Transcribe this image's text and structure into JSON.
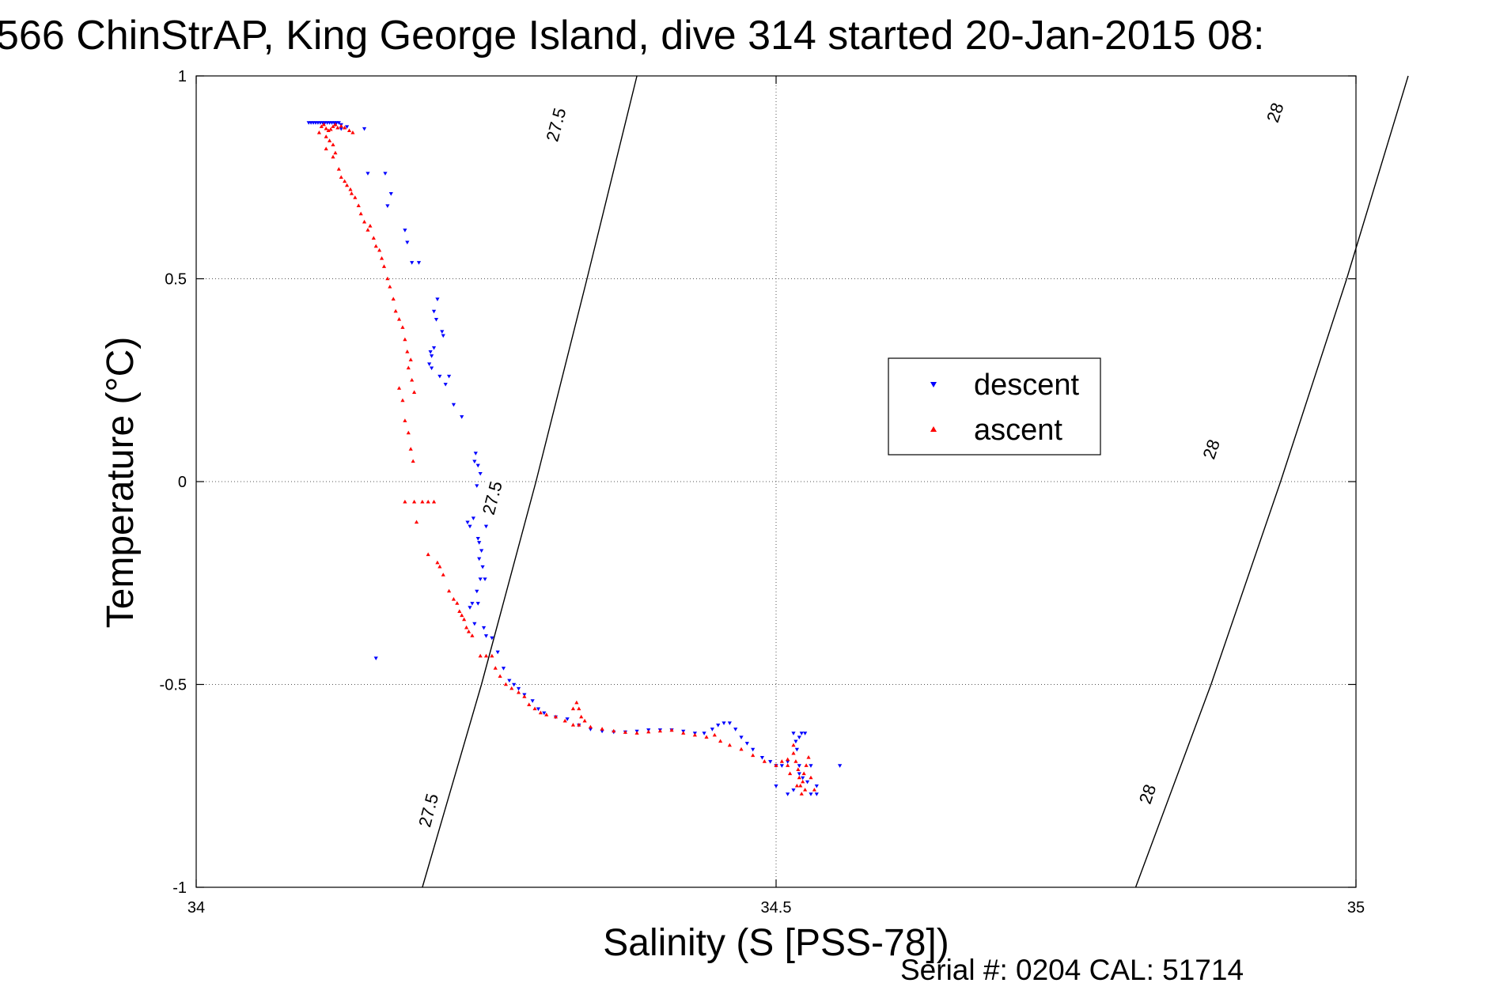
{
  "chart_data": {
    "type": "scatter",
    "title": "566 ChinStrAP, King George Island, dive 314 started 20-Jan-2015 08:",
    "xlabel": "Salinity (S [PSS-78])",
    "ylabel": "Temperature (°C)",
    "xlim": [
      34,
      35
    ],
    "ylim": [
      -1,
      1
    ],
    "xticks": [
      34,
      34.5,
      35
    ],
    "xtick_labels": [
      "34",
      "34.5",
      "35"
    ],
    "yticks": [
      -1,
      -0.5,
      0,
      0.5,
      1
    ],
    "ytick_labels": [
      "-1",
      "-0.5",
      "0",
      "0.5",
      "1"
    ],
    "grid": true,
    "legend_position": "upper-right-center",
    "footer": "Serial #: 0204  CAL: 51714",
    "contours": [
      {
        "label": "27.5",
        "points": [
          [
            34.195,
            -1.0
          ],
          [
            34.246,
            -0.5
          ],
          [
            34.293,
            0.0
          ],
          [
            34.337,
            0.5
          ],
          [
            34.38,
            1.0
          ]
        ],
        "label_positions": [
          [
            34.2,
            -0.81
          ],
          [
            34.255,
            -0.04
          ],
          [
            34.31,
            0.88
          ]
        ]
      },
      {
        "label": "28",
        "points": [
          [
            34.81,
            -1.0
          ],
          [
            34.875,
            -0.5
          ],
          [
            34.935,
            0.0
          ],
          [
            34.992,
            0.5
          ],
          [
            35.045,
            1.0
          ]
        ],
        "label_positions": [
          [
            34.82,
            -0.77
          ],
          [
            34.875,
            0.08
          ],
          [
            34.93,
            0.91
          ]
        ]
      }
    ],
    "series": [
      {
        "name": "descent",
        "color": "#0000ff",
        "marker": "triangle-down",
        "points": [
          [
            34.097,
            0.885
          ],
          [
            34.099,
            0.885
          ],
          [
            34.101,
            0.885
          ],
          [
            34.103,
            0.885
          ],
          [
            34.105,
            0.885
          ],
          [
            34.107,
            0.885
          ],
          [
            34.109,
            0.885
          ],
          [
            34.111,
            0.885
          ],
          [
            34.113,
            0.885
          ],
          [
            34.115,
            0.885
          ],
          [
            34.117,
            0.885
          ],
          [
            34.119,
            0.885
          ],
          [
            34.121,
            0.885
          ],
          [
            34.123,
            0.885
          ],
          [
            34.125,
            0.88
          ],
          [
            34.12,
            0.88
          ],
          [
            34.13,
            0.875
          ],
          [
            34.125,
            0.87
          ],
          [
            34.145,
            0.87
          ],
          [
            34.148,
            0.76
          ],
          [
            34.163,
            0.76
          ],
          [
            34.168,
            0.71
          ],
          [
            34.165,
            0.68
          ],
          [
            34.18,
            0.62
          ],
          [
            34.182,
            0.59
          ],
          [
            34.186,
            0.54
          ],
          [
            34.192,
            0.54
          ],
          [
            34.208,
            0.45
          ],
          [
            34.205,
            0.42
          ],
          [
            34.207,
            0.4
          ],
          [
            34.212,
            0.37
          ],
          [
            34.213,
            0.36
          ],
          [
            34.205,
            0.33
          ],
          [
            34.202,
            0.32
          ],
          [
            34.203,
            0.31
          ],
          [
            34.201,
            0.29
          ],
          [
            34.203,
            0.28
          ],
          [
            34.218,
            0.26
          ],
          [
            34.21,
            0.26
          ],
          [
            34.215,
            0.24
          ],
          [
            34.222,
            0.19
          ],
          [
            34.229,
            0.16
          ],
          [
            34.241,
            0.07
          ],
          [
            34.24,
            0.05
          ],
          [
            34.243,
            0.04
          ],
          [
            34.245,
            0.02
          ],
          [
            34.242,
            -0.01
          ],
          [
            34.239,
            -0.09
          ],
          [
            34.234,
            -0.1
          ],
          [
            34.236,
            -0.11
          ],
          [
            34.25,
            -0.11
          ],
          [
            34.243,
            -0.14
          ],
          [
            34.244,
            -0.15
          ],
          [
            34.246,
            -0.17
          ],
          [
            34.244,
            -0.19
          ],
          [
            34.247,
            -0.21
          ],
          [
            34.245,
            -0.24
          ],
          [
            34.242,
            -0.27
          ],
          [
            34.249,
            -0.24
          ],
          [
            34.243,
            -0.3
          ],
          [
            34.238,
            -0.3
          ],
          [
            34.236,
            -0.31
          ],
          [
            34.24,
            -0.35
          ],
          [
            34.248,
            -0.36
          ],
          [
            34.25,
            -0.38
          ],
          [
            34.255,
            -0.385
          ],
          [
            34.26,
            -0.42
          ],
          [
            34.265,
            -0.46
          ],
          [
            34.27,
            -0.49
          ],
          [
            34.274,
            -0.5
          ],
          [
            34.278,
            -0.51
          ],
          [
            34.283,
            -0.525
          ],
          [
            34.29,
            -0.54
          ],
          [
            34.295,
            -0.56
          ],
          [
            34.3,
            -0.57
          ],
          [
            34.31,
            -0.58
          ],
          [
            34.32,
            -0.585
          ],
          [
            34.33,
            -0.6
          ],
          [
            34.34,
            -0.61
          ],
          [
            34.35,
            -0.615
          ],
          [
            34.36,
            -0.617
          ],
          [
            34.37,
            -0.617
          ],
          [
            34.38,
            -0.615
          ],
          [
            34.39,
            -0.612
          ],
          [
            34.4,
            -0.612
          ],
          [
            34.41,
            -0.612
          ],
          [
            34.42,
            -0.615
          ],
          [
            34.43,
            -0.62
          ],
          [
            34.438,
            -0.62
          ],
          [
            34.445,
            -0.61
          ],
          [
            34.45,
            -0.6
          ],
          [
            34.455,
            -0.595
          ],
          [
            34.46,
            -0.595
          ],
          [
            34.465,
            -0.61
          ],
          [
            34.47,
            -0.63
          ],
          [
            34.475,
            -0.645
          ],
          [
            34.48,
            -0.66
          ],
          [
            34.488,
            -0.68
          ],
          [
            34.495,
            -0.69
          ],
          [
            34.5,
            -0.7
          ],
          [
            34.505,
            -0.7
          ],
          [
            34.51,
            -0.69
          ],
          [
            34.515,
            -0.62
          ],
          [
            34.517,
            -0.64
          ],
          [
            34.52,
            -0.63
          ],
          [
            34.522,
            -0.62
          ],
          [
            34.525,
            -0.62
          ],
          [
            34.518,
            -0.66
          ],
          [
            34.52,
            -0.7
          ],
          [
            34.523,
            -0.73
          ],
          [
            34.515,
            -0.76
          ],
          [
            34.51,
            -0.77
          ],
          [
            34.53,
            -0.77
          ],
          [
            34.527,
            -0.74
          ],
          [
            34.535,
            -0.77
          ],
          [
            34.535,
            -0.75
          ],
          [
            34.52,
            -0.72
          ],
          [
            34.53,
            -0.7
          ],
          [
            34.5,
            -0.75
          ],
          [
            34.555,
            -0.7
          ],
          [
            34.155,
            -0.435
          ]
        ]
      },
      {
        "name": "ascent",
        "color": "#ff0000",
        "marker": "triangle-up",
        "points": [
          [
            34.11,
            0.88
          ],
          [
            34.108,
            0.875
          ],
          [
            34.112,
            0.87
          ],
          [
            34.106,
            0.86
          ],
          [
            34.114,
            0.865
          ],
          [
            34.118,
            0.875
          ],
          [
            34.116,
            0.868
          ],
          [
            34.12,
            0.88
          ],
          [
            34.122,
            0.872
          ],
          [
            34.125,
            0.876
          ],
          [
            34.128,
            0.872
          ],
          [
            34.132,
            0.865
          ],
          [
            34.135,
            0.86
          ],
          [
            34.112,
            0.85
          ],
          [
            34.115,
            0.84
          ],
          [
            34.118,
            0.83
          ],
          [
            34.112,
            0.82
          ],
          [
            34.118,
            0.8
          ],
          [
            34.12,
            0.81
          ],
          [
            34.123,
            0.77
          ],
          [
            34.125,
            0.75
          ],
          [
            34.128,
            0.74
          ],
          [
            34.13,
            0.73
          ],
          [
            34.133,
            0.72
          ],
          [
            34.134,
            0.71
          ],
          [
            34.137,
            0.7
          ],
          [
            34.14,
            0.68
          ],
          [
            34.142,
            0.66
          ],
          [
            34.145,
            0.64
          ],
          [
            34.148,
            0.62
          ],
          [
            34.15,
            0.63
          ],
          [
            34.153,
            0.6
          ],
          [
            34.155,
            0.58
          ],
          [
            34.158,
            0.57
          ],
          [
            34.16,
            0.55
          ],
          [
            34.162,
            0.53
          ],
          [
            34.165,
            0.5
          ],
          [
            34.167,
            0.48
          ],
          [
            34.17,
            0.45
          ],
          [
            34.172,
            0.42
          ],
          [
            34.175,
            0.4
          ],
          [
            34.178,
            0.38
          ],
          [
            34.18,
            0.35
          ],
          [
            34.182,
            0.32
          ],
          [
            34.185,
            0.3
          ],
          [
            34.183,
            0.28
          ],
          [
            34.186,
            0.25
          ],
          [
            34.188,
            0.22
          ],
          [
            34.175,
            0.23
          ],
          [
            34.178,
            0.2
          ],
          [
            34.18,
            0.15
          ],
          [
            34.183,
            0.12
          ],
          [
            34.185,
            0.08
          ],
          [
            34.187,
            0.05
          ],
          [
            34.18,
            -0.05
          ],
          [
            34.188,
            -0.05
          ],
          [
            34.195,
            -0.05
          ],
          [
            34.2,
            -0.05
          ],
          [
            34.205,
            -0.05
          ],
          [
            34.19,
            -0.1
          ],
          [
            34.2,
            -0.18
          ],
          [
            34.208,
            -0.2
          ],
          [
            34.21,
            -0.21
          ],
          [
            34.213,
            -0.23
          ],
          [
            34.218,
            -0.27
          ],
          [
            34.222,
            -0.29
          ],
          [
            34.225,
            -0.3
          ],
          [
            34.227,
            -0.32
          ],
          [
            34.229,
            -0.33
          ],
          [
            34.231,
            -0.34
          ],
          [
            34.233,
            -0.36
          ],
          [
            34.235,
            -0.37
          ],
          [
            34.238,
            -0.38
          ],
          [
            34.245,
            -0.43
          ],
          [
            34.25,
            -0.43
          ],
          [
            34.255,
            -0.43
          ],
          [
            34.258,
            -0.46
          ],
          [
            34.262,
            -0.48
          ],
          [
            34.267,
            -0.5
          ],
          [
            34.272,
            -0.51
          ],
          [
            34.278,
            -0.52
          ],
          [
            34.283,
            -0.53
          ],
          [
            34.287,
            -0.55
          ],
          [
            34.292,
            -0.56
          ],
          [
            34.297,
            -0.57
          ],
          [
            34.302,
            -0.575
          ],
          [
            34.31,
            -0.58
          ],
          [
            34.318,
            -0.59
          ],
          [
            34.325,
            -0.6
          ],
          [
            34.33,
            -0.6
          ],
          [
            34.325,
            -0.56
          ],
          [
            34.328,
            -0.545
          ],
          [
            34.33,
            -0.56
          ],
          [
            34.332,
            -0.58
          ],
          [
            34.335,
            -0.59
          ],
          [
            34.34,
            -0.605
          ],
          [
            34.35,
            -0.61
          ],
          [
            34.36,
            -0.615
          ],
          [
            34.37,
            -0.618
          ],
          [
            34.38,
            -0.62
          ],
          [
            34.39,
            -0.617
          ],
          [
            34.4,
            -0.615
          ],
          [
            34.41,
            -0.613
          ],
          [
            34.42,
            -0.62
          ],
          [
            34.43,
            -0.625
          ],
          [
            34.44,
            -0.63
          ],
          [
            34.447,
            -0.625
          ],
          [
            34.452,
            -0.64
          ],
          [
            34.46,
            -0.65
          ],
          [
            34.47,
            -0.66
          ],
          [
            34.48,
            -0.675
          ],
          [
            34.49,
            -0.69
          ],
          [
            34.5,
            -0.7
          ],
          [
            34.505,
            -0.69
          ],
          [
            34.51,
            -0.685
          ],
          [
            34.515,
            -0.65
          ],
          [
            34.515,
            -0.67
          ],
          [
            34.517,
            -0.69
          ],
          [
            34.519,
            -0.71
          ],
          [
            34.52,
            -0.73
          ],
          [
            34.521,
            -0.75
          ],
          [
            34.522,
            -0.77
          ],
          [
            34.525,
            -0.76
          ],
          [
            34.523,
            -0.74
          ],
          [
            34.524,
            -0.72
          ],
          [
            34.526,
            -0.7
          ],
          [
            34.528,
            -0.68
          ],
          [
            34.53,
            -0.73
          ],
          [
            34.533,
            -0.76
          ],
          [
            34.518,
            -0.75
          ],
          [
            34.512,
            -0.72
          ],
          [
            34.51,
            -0.7
          ]
        ]
      }
    ]
  }
}
